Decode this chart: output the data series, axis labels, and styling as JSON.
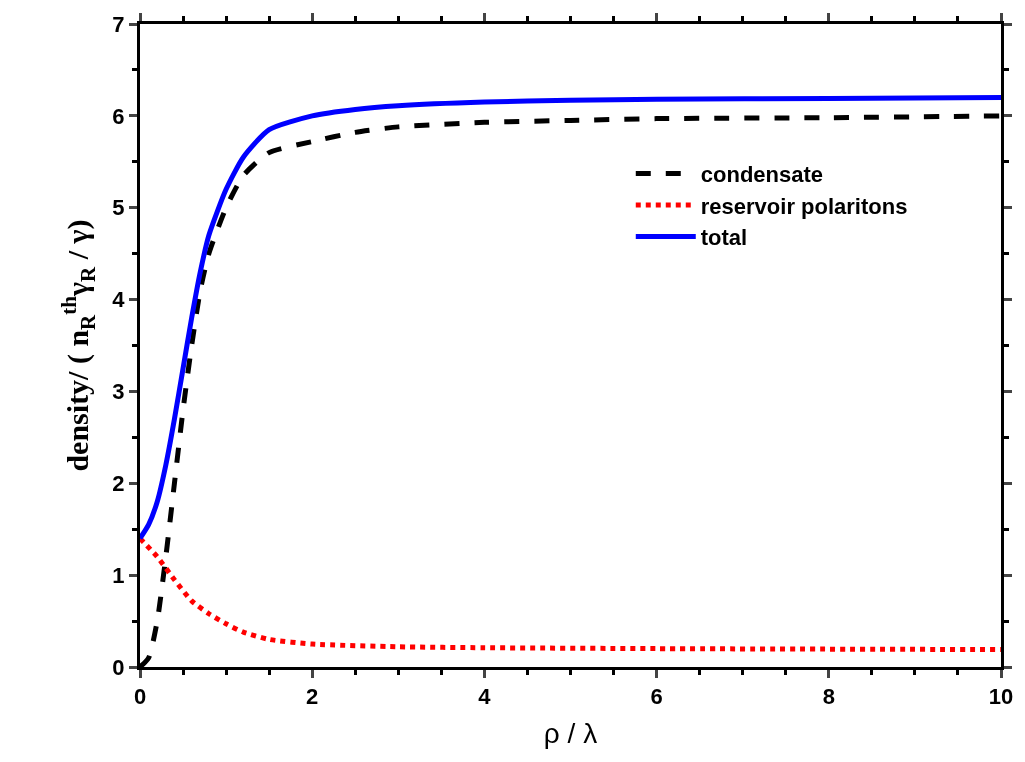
{
  "chart_data": {
    "type": "line",
    "xlabel": "ρ / λ",
    "ylabel": "density/ ( n$_{R}$$^{th}$γ$_{R}$ / γ)",
    "xlim": [
      0,
      10
    ],
    "ylim": [
      0,
      7
    ],
    "xticks": [
      0,
      2,
      4,
      6,
      8,
      10
    ],
    "yticks": [
      0,
      1,
      2,
      3,
      4,
      5,
      6,
      7
    ],
    "legend": "right",
    "marker": "none",
    "series": [
      {
        "name": "condensate",
        "color": "#000000",
        "line_style": "dashed",
        "x": [
          0,
          0.1,
          0.2,
          0.3,
          0.4,
          0.5,
          0.6,
          0.7,
          0.8,
          1.0,
          1.2,
          1.5,
          2,
          2.5,
          3,
          4,
          5,
          6,
          8,
          10
        ],
        "values": [
          0,
          0.1,
          0.5,
          1.2,
          2.0,
          2.8,
          3.5,
          4.1,
          4.5,
          5.0,
          5.35,
          5.6,
          5.72,
          5.82,
          5.88,
          5.93,
          5.95,
          5.97,
          5.98,
          6.0
        ]
      },
      {
        "name": "reservoir polaritons",
        "color": "#ff0000",
        "line_style": "dotted",
        "x": [
          0,
          0.2,
          0.4,
          0.6,
          0.8,
          1.0,
          1.2,
          1.5,
          2,
          3,
          4,
          6,
          10
        ],
        "values": [
          1.4,
          1.2,
          0.95,
          0.72,
          0.58,
          0.47,
          0.38,
          0.3,
          0.25,
          0.22,
          0.21,
          0.2,
          0.19
        ]
      },
      {
        "name": "total",
        "color": "#0000ff",
        "line_style": "solid",
        "x": [
          0,
          0.1,
          0.2,
          0.3,
          0.4,
          0.5,
          0.6,
          0.7,
          0.8,
          1.0,
          1.2,
          1.5,
          2,
          2.5,
          3,
          4,
          5,
          6,
          8,
          10
        ],
        "values": [
          1.4,
          1.55,
          1.8,
          2.2,
          2.7,
          3.25,
          3.8,
          4.3,
          4.7,
          5.2,
          5.55,
          5.85,
          6.0,
          6.07,
          6.11,
          6.15,
          6.17,
          6.18,
          6.19,
          6.2
        ]
      }
    ]
  }
}
